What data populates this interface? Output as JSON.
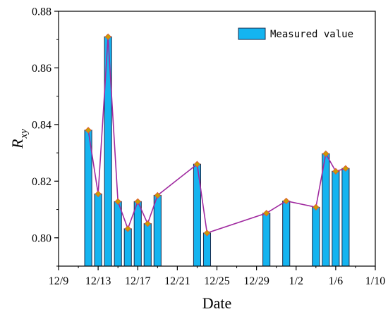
{
  "chart_data": {
    "type": "bar",
    "xlabel": "Date",
    "ylabel_main": "R",
    "ylabel_sub": "xy",
    "xlim": [
      "12/9",
      "1/10"
    ],
    "ylim": [
      0.79,
      0.88
    ],
    "xticks": [
      "12/9",
      "12/13",
      "12/17",
      "12/21",
      "12/25",
      "12/29",
      "1/2",
      "1/6",
      "1/10"
    ],
    "yticks": [
      "0.80",
      "0.82",
      "0.84",
      "0.86",
      "0.88"
    ],
    "legend": {
      "label": "Measured value",
      "placement": "top-right"
    },
    "grid": false,
    "colors": {
      "bar_fill": "#14b4f0",
      "bar_edge": "#1a2a4a",
      "line": "#a02aa0",
      "marker": "#c8a000",
      "marker_edge": "#e06030"
    },
    "series": [
      {
        "name": "Measured value",
        "x": [
          "12/12",
          "12/13",
          "12/14",
          "12/15",
          "12/16",
          "12/17",
          "12/18",
          "12/19",
          "12/23",
          "12/24",
          "12/30",
          "1/1",
          "1/4",
          "1/5",
          "1/6",
          "1/7"
        ],
        "values": [
          0.838,
          0.8155,
          0.871,
          0.8128,
          0.8032,
          0.8128,
          0.805,
          0.815,
          0.826,
          0.8017,
          0.8087,
          0.813,
          0.8108,
          0.8297,
          0.8235,
          0.8245
        ]
      }
    ]
  }
}
